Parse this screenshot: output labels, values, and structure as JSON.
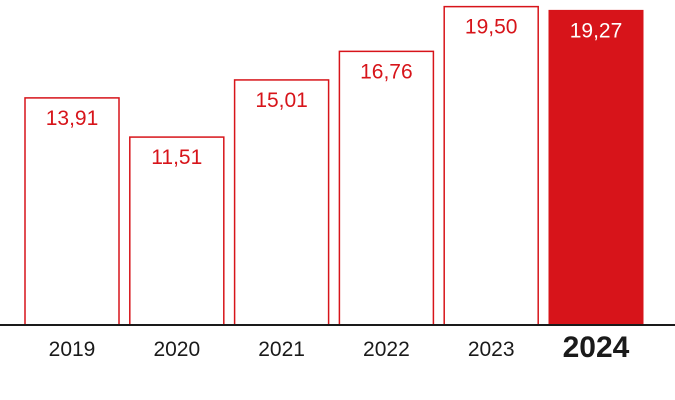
{
  "chart_data": {
    "type": "bar",
    "title": "",
    "xlabel": "",
    "ylabel": "",
    "categories": [
      "2019",
      "2020",
      "2021",
      "2022",
      "2023",
      "2024"
    ],
    "values": [
      13.91,
      11.51,
      15.01,
      16.76,
      19.5,
      19.27
    ],
    "value_labels": [
      "13,91",
      "11,51",
      "15,01",
      "16,76",
      "19,50",
      "19,27"
    ],
    "highlight_category": "2024",
    "ylim": [
      0,
      19.6
    ],
    "grid": false,
    "legend": "none"
  },
  "colors": {
    "accent": "#d7141a",
    "axis": "#1a1a1a",
    "label_on_fill": "#ffffff",
    "tick_text": "#1a1a1a"
  }
}
